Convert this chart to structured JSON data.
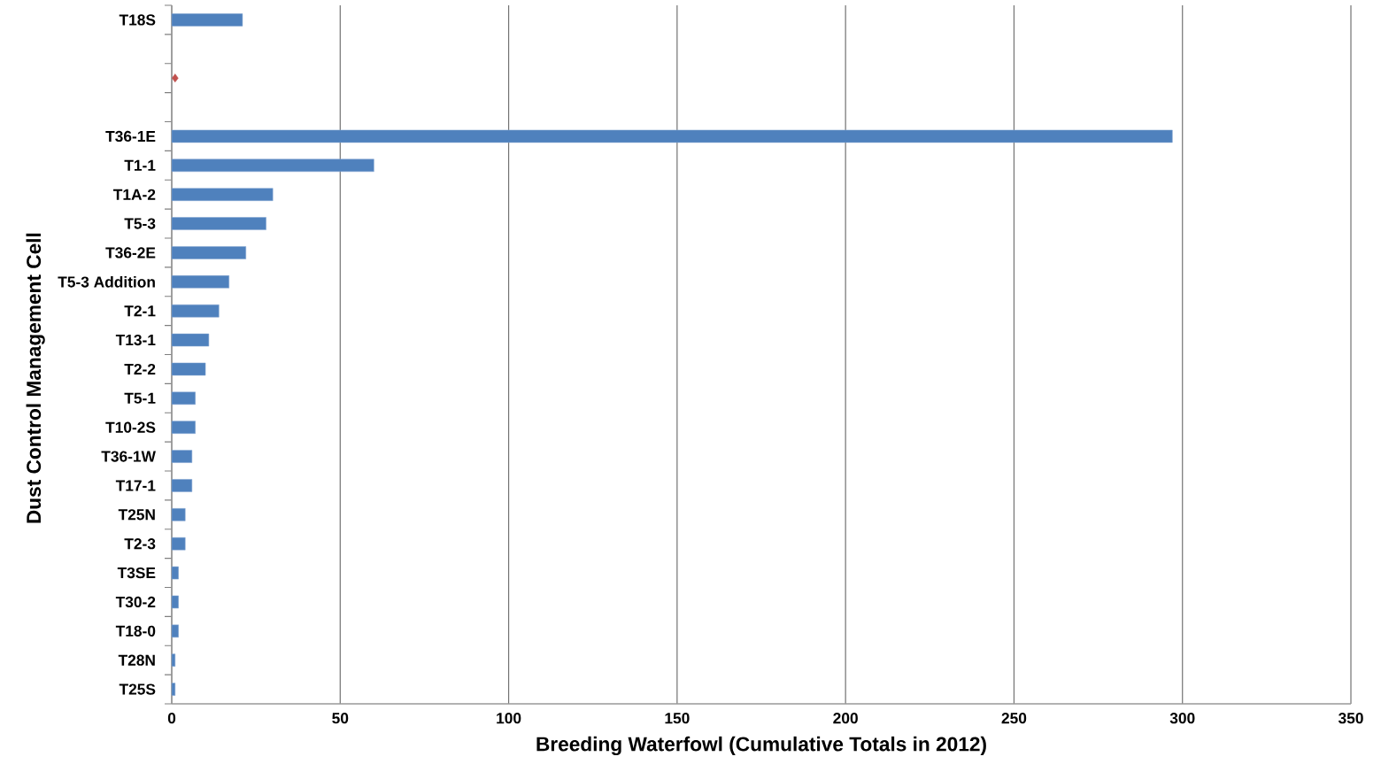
{
  "chart_data": {
    "type": "bar",
    "orientation": "horizontal",
    "xlabel": "Breeding Waterfowl (Cumulative Totals in 2012)",
    "ylabel": "Dust Control Management Cell",
    "categories": [
      "T18S",
      null,
      null,
      null,
      "T36-1E",
      "T1-1",
      "T1A-2",
      "T5-3",
      "T36-2E",
      "T5-3 Addition",
      "T2-1",
      "T13-1",
      "T2-2",
      "T5-1",
      "T10-2S",
      "T36-1W",
      "T17-1",
      "T25N",
      "T2-3",
      "T3SE",
      "T30-2",
      "T18-0",
      "T28N",
      "T25S"
    ],
    "series": [
      {
        "color": "#4f81bd",
        "values": [
          21,
          null,
          null,
          null,
          297,
          60,
          30,
          28,
          22,
          17,
          14,
          11,
          10,
          7,
          7,
          6,
          6,
          4,
          4,
          2,
          2,
          2,
          1,
          1
        ]
      },
      {
        "type": "scatter",
        "marker": "diamond",
        "color": "#c0504d",
        "values": [
          null,
          null,
          1,
          null,
          null,
          null,
          null,
          null,
          null,
          null,
          null,
          null,
          null,
          null,
          null,
          null,
          null,
          null,
          null,
          null,
          null,
          null,
          null,
          null
        ]
      }
    ],
    "xlim": [
      0,
      350
    ],
    "xticks": [
      0,
      50,
      100,
      150,
      200,
      250,
      300,
      350
    ],
    "grid": "x"
  }
}
